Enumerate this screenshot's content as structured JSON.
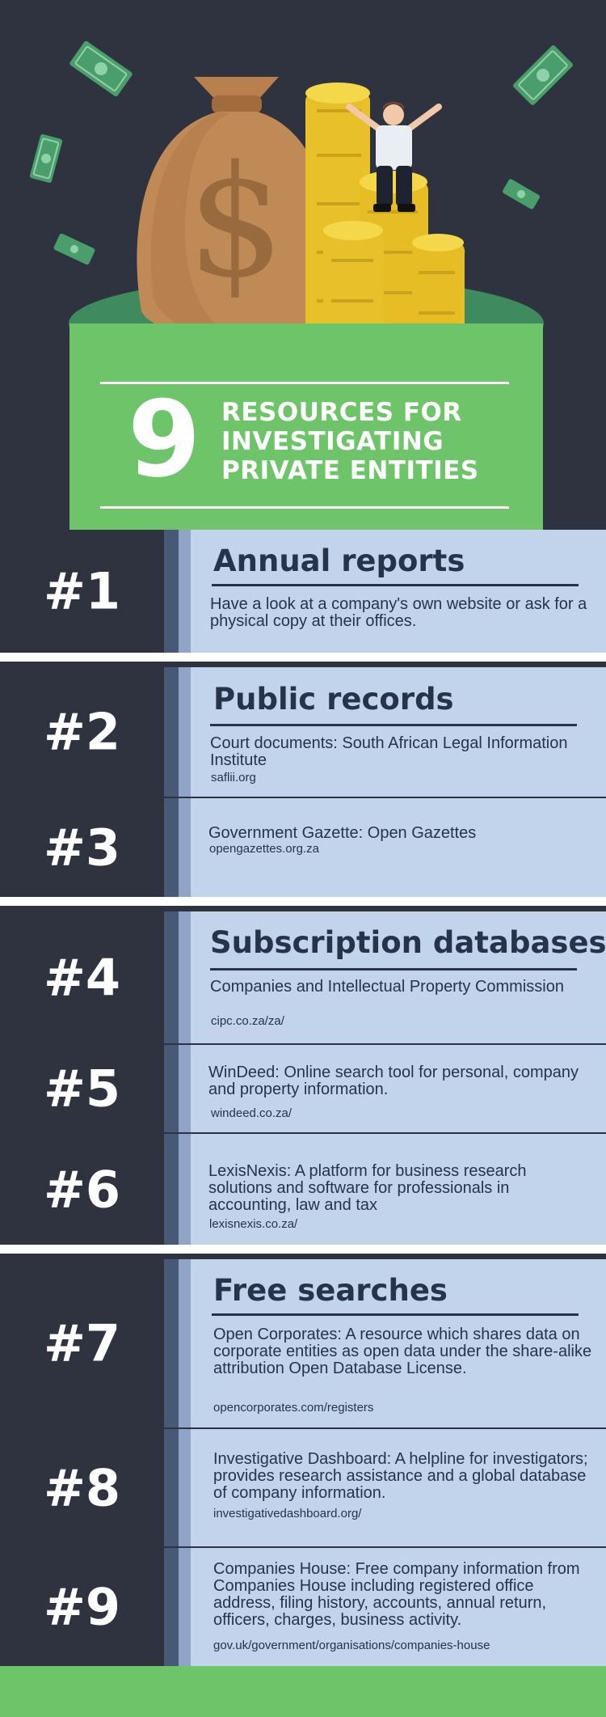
{
  "title": {
    "number": "9",
    "text": "RESOURCES FOR INVESTIGATING PRIVATE ENTITIES"
  },
  "items": [
    {
      "num": "#1",
      "heading": "Annual reports",
      "desc": "Have a look at a company's own website or ask for a physical copy at their offices.",
      "url": ""
    },
    {
      "num": "#2",
      "heading": "Public records",
      "desc": "Court documents: South African Legal Information Institute",
      "url": "saflii.org"
    },
    {
      "num": "#3",
      "heading": "",
      "desc": "Government Gazette: Open Gazettes",
      "url": "opengazettes.org.za"
    },
    {
      "num": "#4",
      "heading": "Subscription databases",
      "desc": "Companies and Intellectual Property Commission",
      "url": "cipc.co.za/za/"
    },
    {
      "num": "#5",
      "heading": "",
      "desc": "WinDeed: Online search tool for personal, company and property information.",
      "url": "windeed.co.za/"
    },
    {
      "num": "#6",
      "heading": "",
      "desc": "LexisNexis: A platform for business research solutions and software for professionals in accounting, law and tax",
      "url": "lexisnexis.co.za/"
    },
    {
      "num": "#7",
      "heading": "Free searches",
      "desc": "Open Corporates: A resource which shares data on corporate entities as open data under the share-alike attribution Open Database License.",
      "url": "opencorporates.com/registers"
    },
    {
      "num": "#8",
      "heading": "",
      "desc": "Investigative Dashboard: A helpline for investigators; provides research assistance and a global database of company information.",
      "url": "investigativedashboard.org/"
    },
    {
      "num": "#9",
      "heading": "",
      "desc": "Companies House: Free company information from Companies House including registered office address, filing history, accounts, annual return, officers, charges, business activity.",
      "url": "gov.uk/government/organisations/companies-house"
    }
  ],
  "colors": {
    "dark": "#2f323f",
    "green": "#6ec469",
    "light_blue": "#c2d3ec",
    "navy_text": "#263449",
    "coin": "#e8c12a",
    "bag": "#c08a57"
  },
  "icons": [
    "money-bag-icon",
    "coin-stack-icon",
    "banknote-icon",
    "person-icon"
  ]
}
